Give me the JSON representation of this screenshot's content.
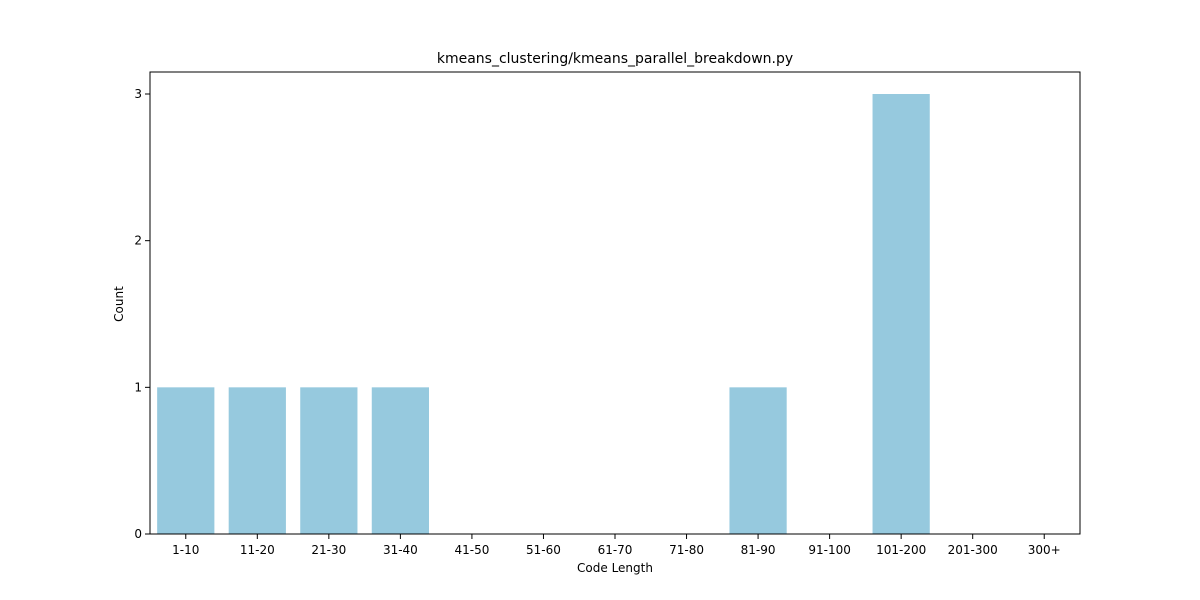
{
  "chart_data": {
    "type": "bar",
    "title": "kmeans_clustering/kmeans_parallel_breakdown.py",
    "xlabel": "Code Length",
    "ylabel": "Count",
    "categories": [
      "1-10",
      "11-20",
      "21-30",
      "31-40",
      "41-50",
      "51-60",
      "61-70",
      "71-80",
      "81-90",
      "91-100",
      "101-200",
      "201-300",
      "300+"
    ],
    "values": [
      1,
      1,
      1,
      1,
      0,
      0,
      0,
      0,
      1,
      0,
      3,
      0,
      0
    ],
    "ylim": [
      0,
      3.15
    ],
    "yticks": [
      0,
      1,
      2,
      3
    ],
    "bar_color": "#96c9de",
    "grid": false,
    "legend": "none"
  }
}
